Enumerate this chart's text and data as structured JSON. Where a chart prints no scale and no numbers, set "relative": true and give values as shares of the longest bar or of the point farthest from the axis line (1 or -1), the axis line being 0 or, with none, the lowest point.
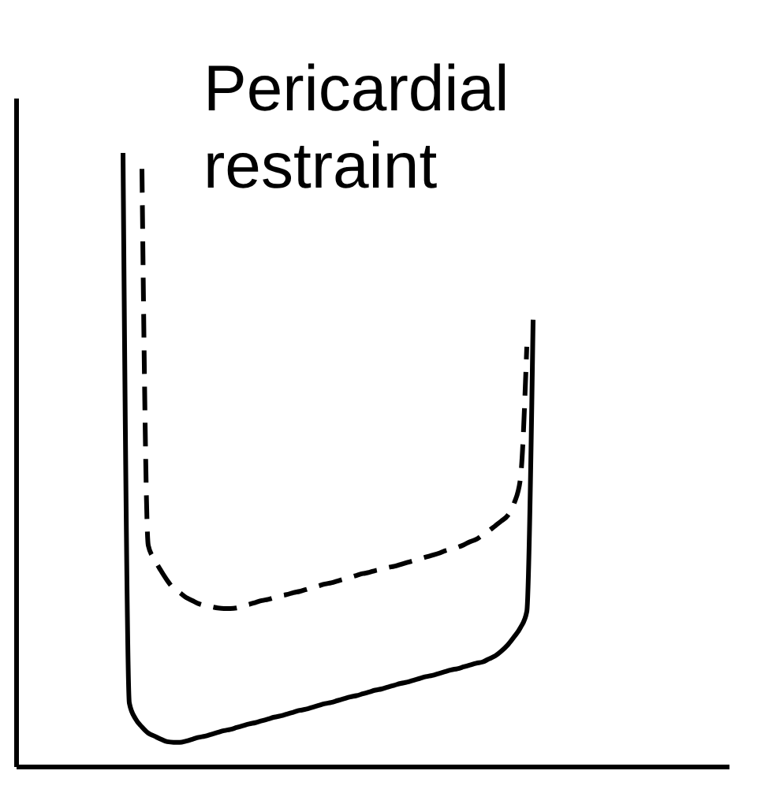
{
  "chart_data": {
    "type": "line",
    "title": "Pericardial restraint",
    "relative": true,
    "categories": [
      null,
      null,
      null,
      null,
      null,
      null,
      null,
      null,
      null,
      null,
      null,
      null,
      null,
      null,
      null,
      null,
      null,
      null,
      null,
      null,
      null,
      null,
      null,
      null,
      null,
      null,
      null,
      null,
      null,
      null,
      null,
      null,
      null,
      null,
      null,
      null,
      null,
      null,
      null,
      null,
      null,
      null,
      null,
      null,
      null,
      null,
      null,
      null,
      null,
      null,
      null,
      null,
      null,
      null,
      null,
      null,
      null,
      null,
      null,
      null,
      null,
      null,
      null,
      null,
      null,
      null,
      null,
      null,
      null,
      null,
      null,
      null,
      null,
      null,
      null,
      null,
      null,
      null,
      null,
      null,
      null,
      null,
      null,
      null,
      null,
      null,
      null,
      null,
      null,
      null,
      null,
      null,
      null,
      null,
      null,
      null,
      null,
      null,
      null,
      null,
      null,
      null,
      null,
      null,
      null,
      null,
      null,
      null,
      null,
      null,
      null,
      null,
      null,
      null
    ],
    "series": [
      {
        "color": "#000000",
        "line_style": "solid",
        "values": [
          null,
          null,
          null,
          null,
          null,
          null,
          null,
          null,
          null,
          null,
          null,
          null,
          null,
          null,
          null,
          null,
          null,
          1.0,
          0.103,
          0.077,
          0.064,
          0.054,
          0.049,
          0.044,
          0.04,
          0.039,
          0.039,
          0.041,
          0.044,
          0.047,
          0.049,
          0.052,
          0.055,
          0.058,
          0.06,
          0.063,
          0.066,
          0.069,
          0.071,
          0.074,
          0.077,
          0.08,
          0.082,
          0.085,
          0.088,
          0.091,
          0.093,
          0.096,
          0.099,
          0.102,
          0.104,
          0.107,
          0.11,
          0.113,
          0.115,
          0.118,
          0.121,
          0.124,
          0.126,
          0.129,
          0.132,
          0.135,
          0.137,
          0.14,
          0.143,
          0.146,
          0.148,
          0.151,
          0.154,
          0.157,
          0.159,
          0.162,
          0.165,
          0.168,
          0.17,
          0.175,
          0.18,
          0.188,
          0.198,
          0.211,
          0.226,
          0.252,
          0.728,
          null,
          null,
          null,
          null,
          null,
          null,
          null,
          null,
          null,
          null,
          null,
          null,
          null,
          null,
          null,
          null,
          null,
          null,
          null,
          null,
          null,
          null,
          null,
          null,
          null,
          null,
          null,
          null,
          null,
          null,
          null
        ]
      },
      {
        "color": "#000000",
        "line_style": "dashed",
        "values": [
          null,
          null,
          null,
          null,
          null,
          null,
          null,
          null,
          null,
          null,
          null,
          null,
          null,
          null,
          null,
          null,
          null,
          null,
          null,
          null,
          0.974,
          0.36,
          0.337,
          0.319,
          0.303,
          0.29,
          0.283,
          0.275,
          0.27,
          0.265,
          0.262,
          0.26,
          0.258,
          0.257,
          0.257,
          0.258,
          0.261,
          0.264,
          0.267,
          0.27,
          0.272,
          0.275,
          0.278,
          0.28,
          0.283,
          0.285,
          0.288,
          0.291,
          0.294,
          0.297,
          0.299,
          0.302,
          0.305,
          0.308,
          0.311,
          0.314,
          0.316,
          0.319,
          0.321,
          0.324,
          0.326,
          0.329,
          0.332,
          0.335,
          0.338,
          0.341,
          0.344,
          0.347,
          0.351,
          0.354,
          0.357,
          0.361,
          0.366,
          0.37,
          0.377,
          0.384,
          0.392,
          0.4,
          0.409,
          0.429,
          0.47,
          0.684,
          null,
          null,
          null,
          null,
          null,
          null,
          null,
          null,
          null,
          null,
          null,
          null,
          null,
          null,
          null,
          null,
          null,
          null,
          null,
          null,
          null,
          null,
          null,
          null,
          null,
          null,
          null,
          null,
          null,
          null,
          null,
          null
        ]
      }
    ]
  }
}
